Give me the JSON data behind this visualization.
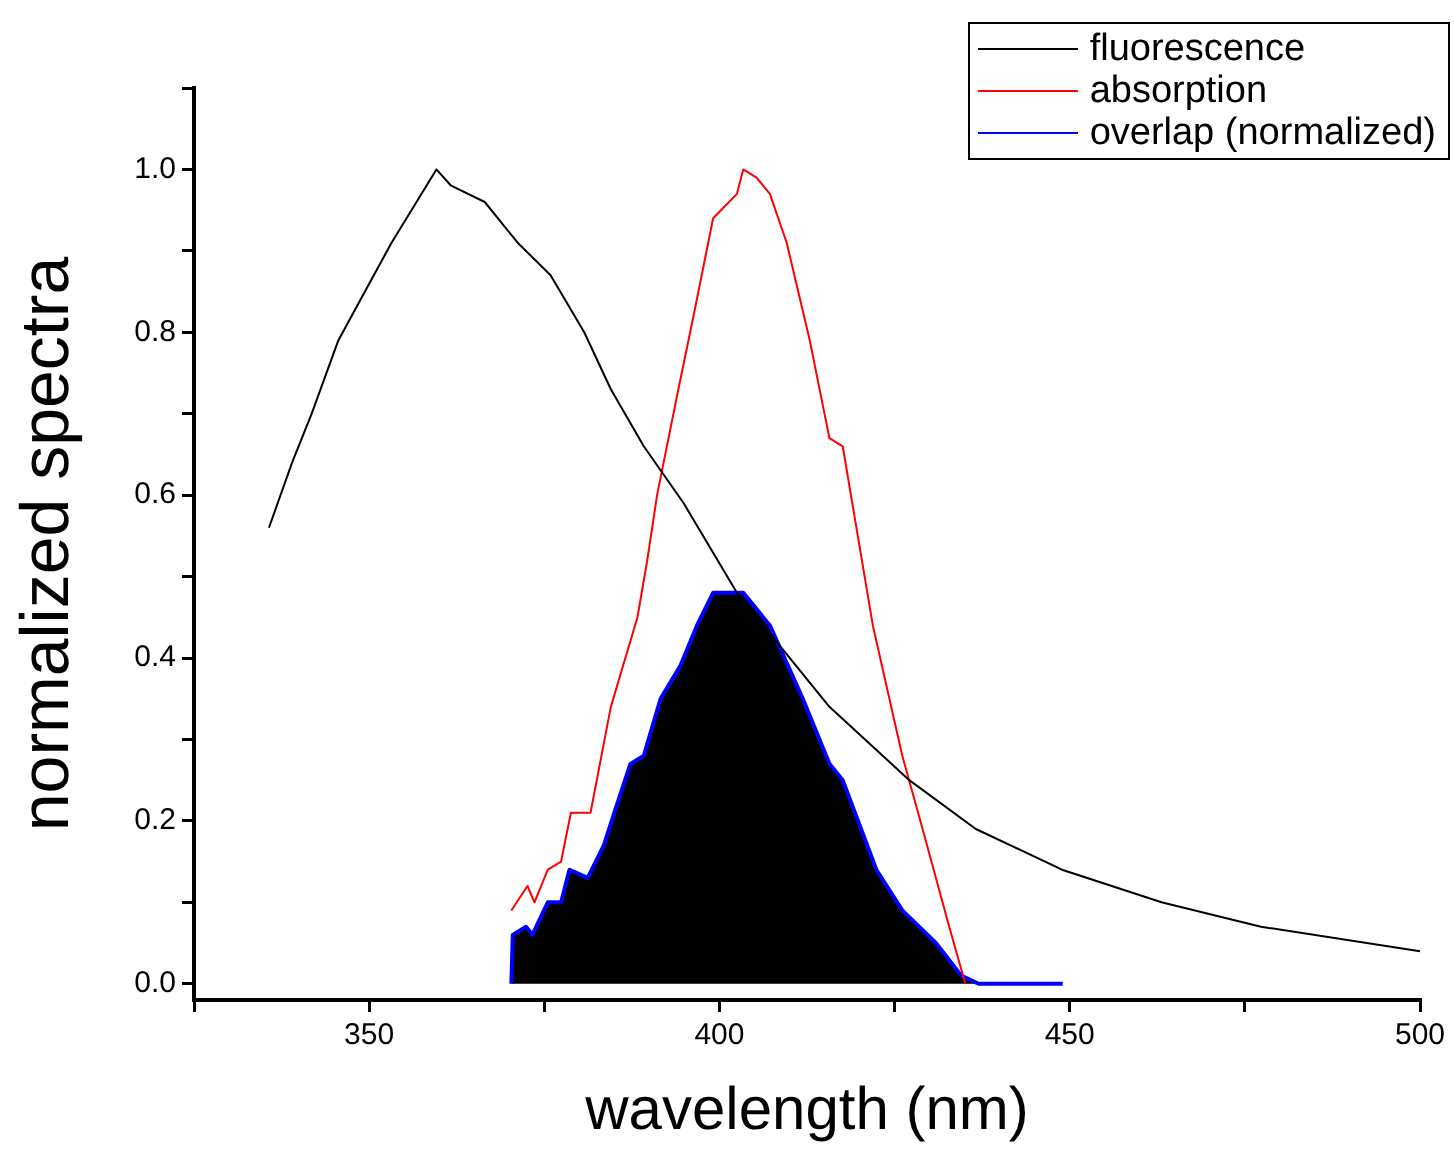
{
  "chart_data": {
    "type": "line",
    "xlabel": "wavelength (nm)",
    "ylabel": "normalized spectra",
    "legend": "top right",
    "grid": false,
    "marker": "none",
    "line_style": "solid",
    "xlim": [
      325,
      500
    ],
    "ylim": [
      -0.02,
      1.1
    ],
    "xticks": [
      {
        "value": 325,
        "label": null
      },
      350,
      {
        "value": 375,
        "label": null
      },
      400,
      {
        "value": 425,
        "label": null
      },
      450,
      {
        "value": 475,
        "label": null
      },
      500
    ],
    "yticks": [
      {
        "value": 0,
        "label": "0.0"
      },
      {
        "value": 0.1,
        "label": null
      },
      {
        "value": 0.2,
        "label": "0.2"
      },
      {
        "value": 0.3,
        "label": null
      },
      {
        "value": 0.4,
        "label": "0.4"
      },
      {
        "value": 0.5,
        "label": null
      },
      {
        "value": 0.6,
        "label": "0.6"
      },
      {
        "value": 0.7,
        "label": null
      },
      {
        "value": 0.8,
        "label": "0.8"
      },
      {
        "value": 0.9,
        "label": null
      },
      {
        "value": 1.0,
        "label": "1.0"
      },
      {
        "value": 1.1,
        "label": null
      }
    ],
    "series": [
      {
        "name": "fluorescence",
        "color": "#000000",
        "x": [
          335.7,
          339,
          341.8,
          345.6,
          349.4,
          353.2,
          359.6,
          361.7,
          366.5,
          371.2,
          375.9,
          380.7,
          384.5,
          389.2,
          394.9,
          402.5,
          409.1,
          415.7,
          427.1,
          436.6,
          448.9,
          463.1,
          477.3,
          500
        ],
        "values": [
          0.56,
          0.64,
          0.7,
          0.79,
          0.85,
          0.91,
          1.0,
          0.98,
          0.96,
          0.91,
          0.87,
          0.8,
          0.73,
          0.66,
          0.59,
          0.48,
          0.41,
          0.34,
          0.25,
          0.19,
          0.14,
          0.1,
          0.07,
          0.04
        ]
      },
      {
        "name": "absorption",
        "color": "#ff0000",
        "x": [
          370.3,
          372.6,
          373.6,
          375.5,
          377.4,
          378.8,
          381.6,
          384.5,
          388.3,
          389.7,
          391.1,
          393.9,
          396.3,
          399.1,
          402.5,
          403.4,
          405.3,
          407.2,
          409.6,
          412.9,
          415.7,
          417.6,
          421.9,
          426.1,
          429,
          432.8,
          435.1
        ],
        "values": [
          0.09,
          0.12,
          0.1,
          0.14,
          0.15,
          0.21,
          0.21,
          0.34,
          0.45,
          0.52,
          0.6,
          0.72,
          0.82,
          0.94,
          0.97,
          1.0,
          0.99,
          0.97,
          0.91,
          0.79,
          0.67,
          0.66,
          0.44,
          0.28,
          0.19,
          0.07,
          0.0
        ]
      },
      {
        "name": "overlap (normalized)",
        "color": "#0000ff",
        "type": "area",
        "x": [
          370.3,
          370.5,
          372.4,
          373.3,
          375.5,
          377.4,
          378.6,
          381.2,
          383.5,
          385,
          387.3,
          389.2,
          391.6,
          394.4,
          396.8,
          399.1,
          403.4,
          407.2,
          411.9,
          415.7,
          417.6,
          422.4,
          426.1,
          430.9,
          434.5,
          437,
          440,
          443,
          449
        ],
        "values": [
          0.0,
          0.06,
          0.07,
          0.06,
          0.1,
          0.1,
          0.14,
          0.13,
          0.17,
          0.21,
          0.27,
          0.28,
          0.35,
          0.39,
          0.44,
          0.48,
          0.48,
          0.44,
          0.35,
          0.27,
          0.25,
          0.14,
          0.09,
          0.05,
          0.01,
          0.0,
          0.0,
          0.0,
          0.0
        ]
      }
    ]
  }
}
